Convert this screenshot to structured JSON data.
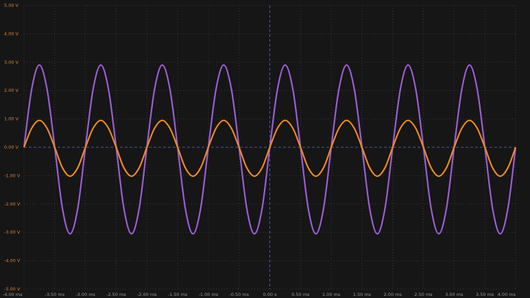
{
  "chart_data": {
    "type": "line",
    "x": [
      -4,
      -3.875,
      -3.75,
      -3.625,
      -3.5,
      -3.375,
      -3.25,
      -3.125,
      -3,
      -2.875,
      -2.75,
      -2.625,
      -2.5,
      -2.375,
      -2.25,
      -2.125,
      -2,
      -1.875,
      -1.75,
      -1.625,
      -1.5,
      -1.375,
      -1.25,
      -1.125,
      -1,
      -0.875,
      -0.75,
      -0.625,
      -0.5,
      -0.375,
      -0.25,
      -0.125,
      0,
      0.125,
      0.25,
      0.375,
      0.5,
      0.625,
      0.75,
      0.875,
      1,
      1.125,
      1.25,
      1.375,
      1.5,
      1.625,
      1.75,
      1.875,
      2,
      2.125,
      2.25,
      2.375,
      2.5,
      2.625,
      2.75,
      2.875,
      3,
      3.125,
      3.25,
      3.375,
      3.5,
      3.625,
      3.75,
      3.875,
      4
    ],
    "series": [
      {
        "color": "#9b5fd6",
        "values": [
          0,
          2.05,
          2.9,
          2.05,
          0,
          -2.15,
          -3.05,
          -2.15,
          0,
          2.05,
          2.9,
          2.05,
          0,
          -2.15,
          -3.05,
          -2.15,
          0,
          2.05,
          2.9,
          2.05,
          0,
          -2.15,
          -3.05,
          -2.15,
          0,
          2.05,
          2.9,
          2.05,
          0,
          -2.15,
          -3.05,
          -2.15,
          0,
          2.05,
          2.9,
          2.05,
          0,
          -2.15,
          -3.05,
          -2.15,
          0,
          2.05,
          2.9,
          2.05,
          0,
          -2.15,
          -3.05,
          -2.15,
          0,
          2.05,
          2.9,
          2.05,
          0,
          -2.15,
          -3.05,
          -2.15,
          0,
          2.05,
          2.9,
          2.05,
          0,
          -2.15,
          -3.05,
          -2.15,
          0
        ]
      },
      {
        "color": "#f08a24",
        "values": [
          0,
          0.67,
          0.95,
          0.67,
          0,
          -0.72,
          -1.02,
          -0.72,
          0,
          0.67,
          0.95,
          0.67,
          0,
          -0.72,
          -1.02,
          -0.72,
          0,
          0.67,
          0.95,
          0.67,
          0,
          -0.72,
          -1.02,
          -0.72,
          0,
          0.67,
          0.95,
          0.67,
          0,
          -0.72,
          -1.02,
          -0.72,
          0,
          0.67,
          0.95,
          0.67,
          0,
          -0.72,
          -1.02,
          -0.72,
          0,
          0.67,
          0.95,
          0.67,
          0,
          -0.72,
          -1.02,
          -0.72,
          0,
          0.67,
          0.95,
          0.67,
          0,
          -0.72,
          -1.02,
          -0.72,
          0,
          0.67,
          0.95,
          0.67,
          0,
          -0.72,
          -1.02,
          -0.72,
          0
        ]
      }
    ],
    "xlim": [
      -4,
      4
    ],
    "xticks": [
      {
        "value": -4,
        "label": "-4.00 ms"
      },
      {
        "value": -3.5,
        "label": "-3.50 ms"
      },
      {
        "value": -3,
        "label": "-3.00 ms"
      },
      {
        "value": -2.5,
        "label": "-2.50 ms"
      },
      {
        "value": -2,
        "label": "-2.00 ms"
      },
      {
        "value": -1.5,
        "label": "-1.50 ms"
      },
      {
        "value": -1,
        "label": "-1.00 ms"
      },
      {
        "value": -0.5,
        "label": "-0.50 ms"
      },
      {
        "value": 0,
        "label": "0.00 s"
      },
      {
        "value": 0.5,
        "label": "0.50 ms"
      },
      {
        "value": 1,
        "label": "1.00 ms"
      },
      {
        "value": 1.5,
        "label": "1.50 ms"
      },
      {
        "value": 2,
        "label": "2.00 ms"
      },
      {
        "value": 2.5,
        "label": "2.50 ms"
      },
      {
        "value": 3,
        "label": "3.00 ms"
      },
      {
        "value": 3.5,
        "label": "3.50 ms"
      },
      {
        "value": 4,
        "label": "4.00 ms"
      }
    ],
    "ylim": [
      -5,
      5
    ],
    "yticks": [
      {
        "value": -5,
        "label": "-5.00 V"
      },
      {
        "value": -4,
        "label": "-4.00 V"
      },
      {
        "value": -3,
        "label": "-3.00 V"
      },
      {
        "value": -2,
        "label": "-2.00 V"
      },
      {
        "value": -1,
        "label": "-1.00 V"
      },
      {
        "value": 0,
        "label": "0.00 V"
      },
      {
        "value": 1,
        "label": "1.00 V"
      },
      {
        "value": 2,
        "label": "2.00 V"
      },
      {
        "value": 3,
        "label": "3.00 V"
      },
      {
        "value": 4,
        "label": "4.00 V"
      },
      {
        "value": 5,
        "label": "5.00 V"
      }
    ],
    "grid": true
  }
}
